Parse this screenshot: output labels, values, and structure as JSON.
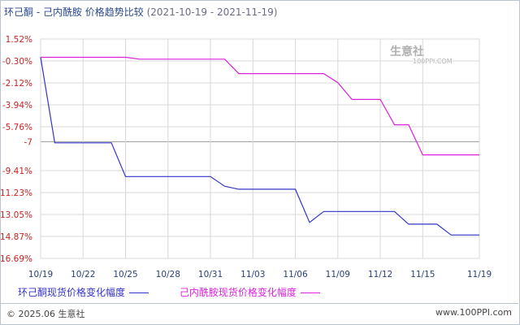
{
  "header": {
    "title": "环己酮 - 己内酰胺 价格趋势比较",
    "date_range": "(2021-10-19 - 2021-11-19)"
  },
  "colors": {
    "series1": "#3333cc",
    "series2": "#dd22dd",
    "grid": "#d8d8d8",
    "zero_line": "#999999",
    "ytick": "#cc2222",
    "xtick": "#2a3f7a"
  },
  "watermark": {
    "text": "生意社",
    "sub": "100PPI.COM"
  },
  "footer": {
    "copyright": "© 2025.06 生意社",
    "site": "www.100PPI.com"
  },
  "chart_data": {
    "type": "line",
    "title": "环己酮 - 己内酰胺 价格趋势比较",
    "x_ticks": [
      "10/19",
      "10/22",
      "10/25",
      "10/28",
      "10/31",
      "11/03",
      "11/06",
      "11/09",
      "11/12",
      "11/15",
      "11/19"
    ],
    "y_ticks": [
      "1.52%",
      "-0.30%",
      "-2.12%",
      "-3.94%",
      "-5.76%",
      "-7",
      "-9.41%",
      "-11.23%",
      "-13.05%",
      "-14.87%",
      "-16.69%"
    ],
    "ylim": [
      -16.69,
      1.52
    ],
    "grid": true,
    "legend_position": "bottom",
    "series": [
      {
        "name": "环己酮现货价格变化幅度",
        "points": [
          [
            "10/19",
            0
          ],
          [
            "10/20",
            -7.1
          ],
          [
            "10/21",
            -7.1
          ],
          [
            "10/22",
            -7.1
          ],
          [
            "10/23",
            -7.1
          ],
          [
            "10/24",
            -7.1
          ],
          [
            "10/25",
            -9.9
          ],
          [
            "10/26",
            -9.9
          ],
          [
            "10/27",
            -9.9
          ],
          [
            "10/28",
            -9.9
          ],
          [
            "10/29",
            -9.9
          ],
          [
            "10/30",
            -9.9
          ],
          [
            "10/31",
            -9.9
          ],
          [
            "11/01",
            -10.7
          ],
          [
            "11/02",
            -10.95
          ],
          [
            "11/03",
            -10.95
          ],
          [
            "11/04",
            -10.95
          ],
          [
            "11/05",
            -10.95
          ],
          [
            "11/06",
            -10.95
          ],
          [
            "11/07",
            -13.7
          ],
          [
            "11/08",
            -12.8
          ],
          [
            "11/09",
            -12.8
          ],
          [
            "11/10",
            -12.8
          ],
          [
            "11/11",
            -12.8
          ],
          [
            "11/12",
            -12.8
          ],
          [
            "11/13",
            -12.8
          ],
          [
            "11/14",
            -13.85
          ],
          [
            "11/15",
            -13.85
          ],
          [
            "11/16",
            -13.85
          ],
          [
            "11/17",
            -14.75
          ],
          [
            "11/18",
            -14.75
          ],
          [
            "11/19",
            -14.75
          ]
        ]
      },
      {
        "name": "己内酰胺现货价格变化幅度",
        "points": [
          [
            "10/19",
            0
          ],
          [
            "10/20",
            0
          ],
          [
            "10/21",
            0
          ],
          [
            "10/22",
            0
          ],
          [
            "10/23",
            0
          ],
          [
            "10/24",
            0
          ],
          [
            "10/25",
            0
          ],
          [
            "10/26",
            -0.15
          ],
          [
            "10/27",
            -0.15
          ],
          [
            "10/28",
            -0.15
          ],
          [
            "10/29",
            -0.15
          ],
          [
            "10/30",
            -0.15
          ],
          [
            "10/31",
            -0.15
          ],
          [
            "11/01",
            -0.15
          ],
          [
            "11/02",
            -1.35
          ],
          [
            "11/03",
            -1.35
          ],
          [
            "11/04",
            -1.35
          ],
          [
            "11/05",
            -1.35
          ],
          [
            "11/06",
            -1.35
          ],
          [
            "11/07",
            -1.35
          ],
          [
            "11/08",
            -1.35
          ],
          [
            "11/09",
            -2.1
          ],
          [
            "11/10",
            -3.5
          ],
          [
            "11/11",
            -3.5
          ],
          [
            "11/12",
            -3.5
          ],
          [
            "11/13",
            -5.6
          ],
          [
            "11/14",
            -5.6
          ],
          [
            "11/15",
            -8.1
          ],
          [
            "11/16",
            -8.1
          ],
          [
            "11/17",
            -8.1
          ],
          [
            "11/18",
            -8.1
          ],
          [
            "11/19",
            -8.1
          ]
        ]
      }
    ]
  }
}
